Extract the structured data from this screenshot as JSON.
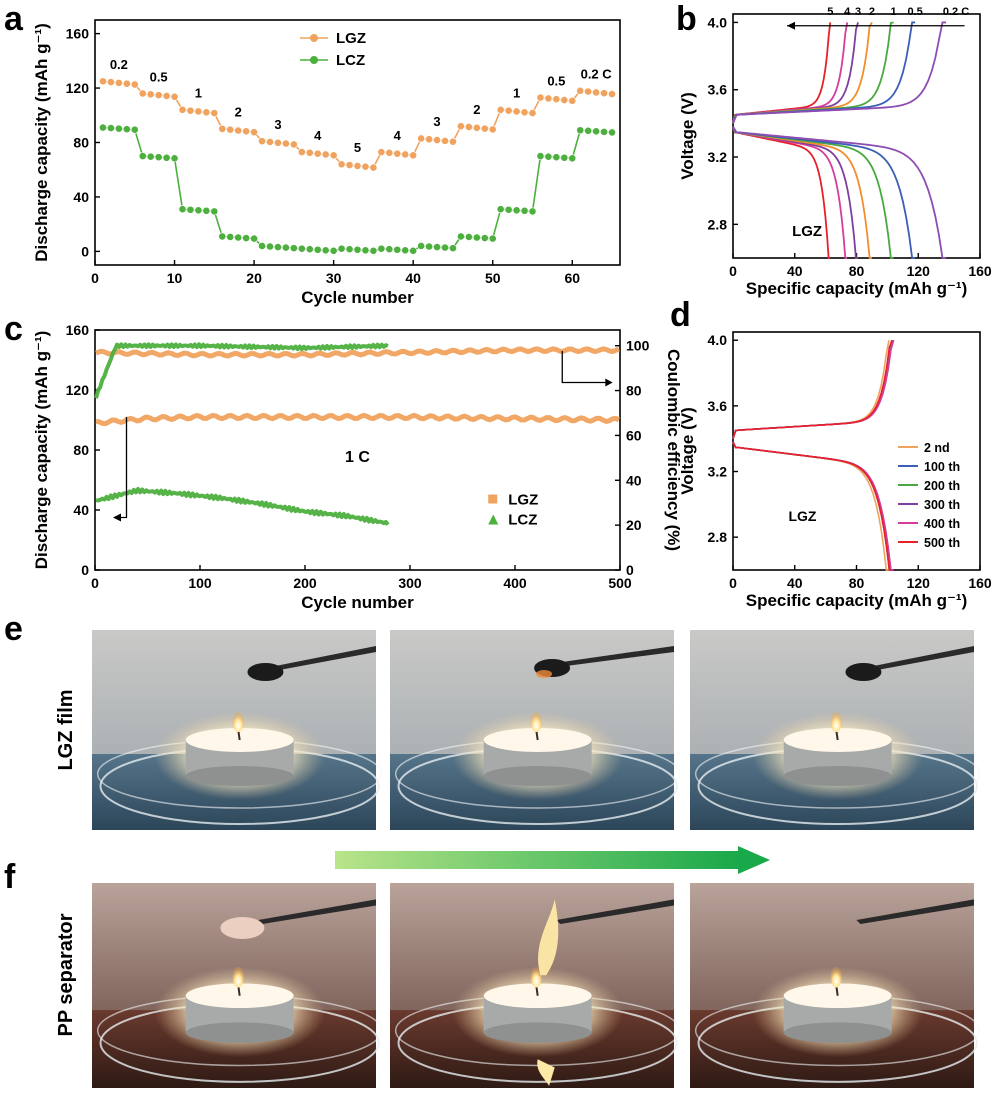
{
  "panel_labels": {
    "a": "a",
    "b": "b",
    "c": "c",
    "d": "d",
    "e": "e",
    "f": "f"
  },
  "colors": {
    "lgz": "#f0a35e",
    "lcz": "#4caf3e",
    "arrow_start": "#b9e48a",
    "arrow_end": "#19a84a"
  },
  "panel_e": {
    "row_label": "LGZ film"
  },
  "panel_f": {
    "row_label": "PP separator"
  },
  "chart_data": [
    {
      "id": "a",
      "type": "scatter",
      "xlabel": "Cycle number",
      "ylabel": "Discharge capacity (mAh g⁻¹)",
      "xlim": [
        0,
        66
      ],
      "ylim": [
        -10,
        170
      ],
      "xticks": [
        "0",
        "10",
        "20",
        "30",
        "40",
        "50",
        "60"
      ],
      "yticks": [
        "0",
        "40",
        "80",
        "120",
        "160"
      ],
      "legend": [
        "LGZ",
        "LCZ"
      ],
      "series": [
        {
          "name": "LGZ",
          "color": "#f0a35e",
          "levels": [
            125,
            116,
            104,
            90,
            81,
            73,
            64,
            73,
            83,
            92,
            104,
            113,
            118
          ]
        },
        {
          "name": "LCZ",
          "color": "#4caf3e",
          "levels": [
            91,
            70,
            31,
            11,
            4,
            2,
            2,
            2,
            4,
            11,
            31,
            70,
            89
          ]
        }
      ],
      "rate_labels": [
        "0.2",
        "0.5",
        "1",
        "2",
        "3",
        "4",
        "5",
        "4",
        "3",
        "2",
        "1",
        "0.5",
        "0.2 C"
      ]
    },
    {
      "id": "b",
      "type": "line",
      "xlabel": "Specific capacity (mAh g⁻¹)",
      "ylabel": "Voltage (V)",
      "xlim": [
        0,
        160
      ],
      "ylim": [
        2.6,
        4.05
      ],
      "xticks": [
        "0",
        "40",
        "80",
        "120",
        "160"
      ],
      "yticks": [
        "2.8",
        "3.2",
        "3.6",
        "4.0"
      ],
      "annotation": "LGZ",
      "series": [
        {
          "name": "5",
          "color": "#e8202a",
          "capacity": 63
        },
        {
          "name": "4",
          "color": "#d53d9b",
          "capacity": 74
        },
        {
          "name": "3",
          "color": "#7f3fa0",
          "capacity": 81
        },
        {
          "name": "2",
          "color": "#f28e2b",
          "capacity": 90
        },
        {
          "name": "1",
          "color": "#49a83f",
          "capacity": 104
        },
        {
          "name": "0.5",
          "color": "#3b5fb6",
          "capacity": 118
        },
        {
          "name": "0.2 C",
          "color": "#8e4db3",
          "capacity": 138
        }
      ]
    },
    {
      "id": "c",
      "type": "scatter",
      "xlabel": "Cycle number",
      "ylabel": "Discharge capacity (mAh g⁻¹)",
      "y2label": "Coulombic efficiency (%)",
      "xlim": [
        0,
        500
      ],
      "ylim": [
        0,
        160
      ],
      "y2lim": [
        0,
        107
      ],
      "xticks": [
        "0",
        "100",
        "200",
        "300",
        "400",
        "500"
      ],
      "yticks": [
        "0",
        "40",
        "80",
        "120",
        "160"
      ],
      "y2ticks": [
        "0",
        "20",
        "40",
        "60",
        "80",
        "100"
      ],
      "annotation": "1 C",
      "legend": [
        "LGZ",
        "LCZ"
      ],
      "series": [
        {
          "name": "LGZ discharge",
          "color": "#f0a35e",
          "x": [
            0,
            50,
            100,
            200,
            300,
            400,
            500
          ],
          "y": [
            98,
            101,
            102,
            102,
            102,
            101,
            100
          ]
        },
        {
          "name": "LCZ discharge",
          "color": "#4caf3e",
          "x": [
            0,
            40,
            80,
            120,
            160,
            200,
            240,
            280
          ],
          "y": [
            46,
            53,
            51,
            48,
            44,
            39,
            36,
            31
          ]
        },
        {
          "name": "LGZ efficiency",
          "color": "#f0a35e",
          "x": [
            0,
            100,
            200,
            300,
            400,
            500
          ],
          "y": [
            97,
            96,
            96,
            97,
            98,
            98
          ]
        },
        {
          "name": "LCZ efficiency",
          "color": "#4caf3e",
          "x": [
            0,
            20,
            100,
            200,
            280
          ],
          "y": [
            76,
            100,
            100,
            99,
            100
          ]
        }
      ]
    },
    {
      "id": "d",
      "type": "line",
      "xlabel": "Specific capacity (mAh g⁻¹)",
      "ylabel": "Voltage (V)",
      "xlim": [
        0,
        160
      ],
      "ylim": [
        2.6,
        4.05
      ],
      "xticks": [
        "0",
        "40",
        "80",
        "120",
        "160"
      ],
      "yticks": [
        "2.8",
        "3.2",
        "3.6",
        "4.0"
      ],
      "annotation": "LGZ",
      "series": [
        {
          "name": "2 nd",
          "color": "#f0a35e",
          "capacity": 101
        },
        {
          "name": "100 th",
          "color": "#3b5fb6",
          "capacity": 103
        },
        {
          "name": "200 th",
          "color": "#49a83f",
          "capacity": 103
        },
        {
          "name": "300 th",
          "color": "#7f3fa0",
          "capacity": 104
        },
        {
          "name": "400 th",
          "color": "#d53d9b",
          "capacity": 104
        },
        {
          "name": "500 th",
          "color": "#e8202a",
          "capacity": 103
        }
      ]
    }
  ]
}
